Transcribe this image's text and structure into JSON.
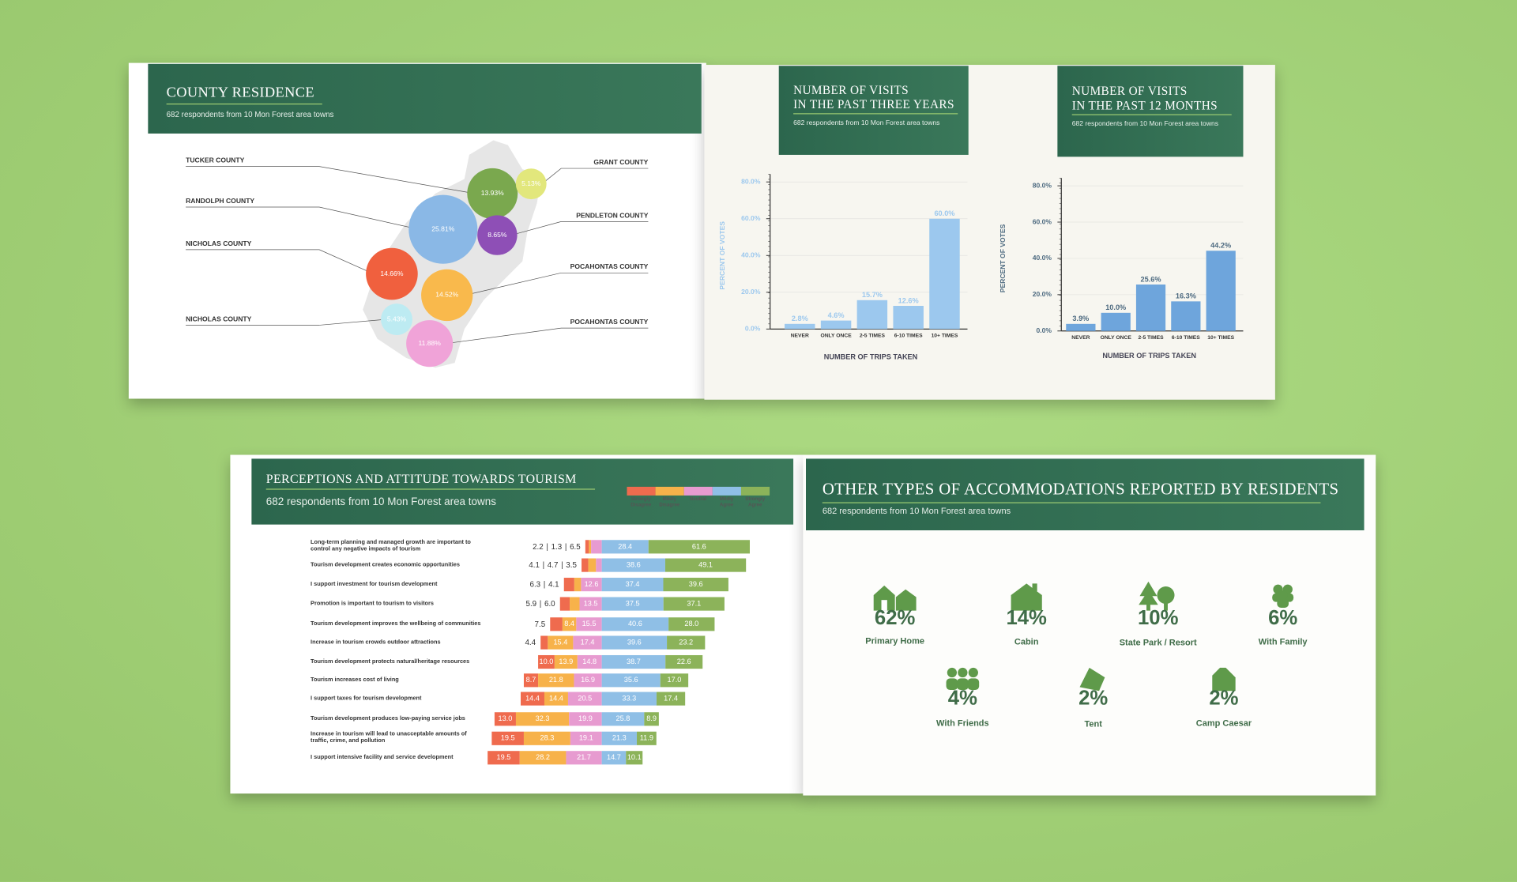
{
  "chart_data": [
    {
      "type": "bubble",
      "title": "COUNTY RESIDENCE",
      "subtitle": "682 respondents from 10 Mon Forest area towns",
      "categories": [
        "TUCKER COUNTY",
        "GRANT COUNTY",
        "RANDOLPH COUNTY",
        "PENDLETON COUNTY",
        "NICHOLAS COUNTY",
        "POCAHONTAS COUNTY",
        "NICHOLAS COUNTY",
        "POCAHONTAS COUNTY"
      ],
      "values": [
        13.93,
        5.13,
        25.81,
        8.65,
        14.66,
        14.52,
        5.43,
        11.88
      ],
      "value_labels": [
        "13.93%",
        "5.13%",
        "25.81%",
        "8.65%",
        "14.66%",
        "14.52%",
        "5.43%",
        "11.88%"
      ],
      "colors": [
        "#7aa84e",
        "#e2e77c",
        "#8ab8e6",
        "#8e4fb6",
        "#f0603e",
        "#f9b94c",
        "#bdebf2",
        "#f0a3d8"
      ]
    },
    {
      "type": "bar",
      "title_lines": [
        "NUMBER OF VISITS",
        "IN THE PAST THREE YEARS"
      ],
      "subtitle": "682 respondents from 10 Mon Forest area towns",
      "categories": [
        "NEVER",
        "ONLY ONCE",
        "2-5 TIMES",
        "6-10 TIMES",
        "10+ TIMES"
      ],
      "values": [
        2.8,
        4.6,
        15.7,
        12.6,
        60.0
      ],
      "value_labels": [
        "2.8%",
        "4.6%",
        "15.7%",
        "12.6%",
        "60.0%"
      ],
      "color": "#9cc8ee",
      "ylim": [
        0,
        80
      ],
      "yticks": [
        {
          "value": 0,
          "label": "0.0%"
        },
        {
          "value": 20,
          "label": "20.0%"
        },
        {
          "value": 40,
          "label": "40.0%"
        },
        {
          "value": 60,
          "label": "60.0%"
        },
        {
          "value": 80,
          "label": "80.0%"
        }
      ],
      "ylabel": "PERCENT OF VOTES",
      "xlabel": "NUMBER OF TRIPS TAKEN",
      "grid": true
    },
    {
      "type": "bar",
      "title_lines": [
        "NUMBER OF VISITS",
        "IN THE PAST 12 MONTHS"
      ],
      "subtitle": "682 respondents from 10 Mon Forest area towns",
      "categories": [
        "NEVER",
        "ONLY ONCE",
        "2-5 TIMES",
        "6-10 TIMES",
        "10+ TIMES"
      ],
      "values": [
        3.9,
        10.0,
        25.6,
        16.3,
        44.2
      ],
      "value_labels": [
        "3.9%",
        "10.0%",
        "25.6%",
        "16.3%",
        "44.2%"
      ],
      "color": "#6ea5dc",
      "ylim": [
        0,
        80
      ],
      "yticks": [
        {
          "value": 0,
          "label": "0.0%"
        },
        {
          "value": 20,
          "label": "20.0%"
        },
        {
          "value": 40,
          "label": "40.0%"
        },
        {
          "value": 60,
          "label": "60.0%"
        },
        {
          "value": 80,
          "label": "80.0%"
        }
      ],
      "ylabel": "PERCENT OF VOTES",
      "xlabel": "NUMBER OF TRIPS TAKEN",
      "grid": true
    },
    {
      "type": "diverging-bar",
      "title": "PERCEPTIONS AND ATTITUDE TOWARDS TOURISM",
      "subtitle": "682 respondents from 10 Mon Forest area towns",
      "label_separator": "|",
      "categories": [
        "Long-term planning and managed growth are important to control any negative impacts of tourism",
        "Tourism development creates economic opportunities",
        "I support investment for tourism development",
        "Promotion is important to tourism to visitors",
        "Tourism development improves the wellbeing of communities",
        "Increase in tourism crowds outdoor attractions",
        "Tourism development protects natural/heritage resources",
        "Tourism increases cost of living",
        "I support taxes for tourism development",
        "Tourism development produces low-paying service jobs",
        "Increase in tourism will lead to unacceptable amounts of traffic, crime, and pollution",
        "I support intensive facility and service development"
      ],
      "series": [
        {
          "name": "Strongly Disagree",
          "color": "#ef6b4e",
          "side": "left",
          "values": [
            2.2,
            4.1,
            6.3,
            5.9,
            7.5,
            4.4,
            10.0,
            8.7,
            14.4,
            13.0,
            19.5,
            19.5
          ],
          "value_labels": [
            "2.2",
            "4.1",
            "6.3",
            "5.9",
            "7.5",
            "4.4",
            "10.0",
            "8.7",
            "14.4",
            "13.0",
            "19.5",
            "19.5"
          ]
        },
        {
          "name": "Mildly Disagree",
          "color": "#f7b24a",
          "side": "left",
          "values": [
            1.3,
            4.7,
            4.1,
            6.0,
            8.4,
            15.4,
            13.9,
            21.8,
            14.4,
            32.3,
            28.3,
            28.2
          ],
          "value_labels": [
            "1.3",
            "4.7",
            "4.1",
            "6.0",
            "8.4",
            "15.4",
            "13.9",
            "21.8",
            "14.4",
            "32.3",
            "28.3",
            "28.2"
          ]
        },
        {
          "name": "Neutral",
          "color": "#e79bd0",
          "side": "left",
          "values": [
            6.5,
            3.5,
            12.6,
            13.5,
            15.5,
            17.4,
            14.8,
            16.9,
            20.5,
            19.9,
            19.1,
            21.7
          ],
          "value_labels": [
            "6.5",
            "3.5",
            "12.6",
            "13.5",
            "15.5",
            "17.4",
            "14.8",
            "16.9",
            "20.5",
            "19.9",
            "19.1",
            "21.7"
          ]
        },
        {
          "name": "Mildly Agree",
          "color": "#8fbfe6",
          "side": "right",
          "values": [
            28.4,
            38.6,
            37.4,
            37.5,
            40.6,
            39.6,
            38.7,
            35.6,
            33.3,
            25.8,
            21.3,
            14.7
          ],
          "value_labels": [
            "28.4",
            "38.6",
            "37.4",
            "37.5",
            "40.6",
            "39.6",
            "38.7",
            "35.6",
            "33.3",
            "25.8",
            "21.3",
            "14.7"
          ]
        },
        {
          "name": "Strongly Agree",
          "color": "#8cb35a",
          "side": "right",
          "values": [
            61.6,
            49.1,
            39.6,
            37.1,
            28.0,
            23.2,
            22.6,
            17.0,
            17.4,
            8.9,
            11.9,
            10.1
          ],
          "value_labels": [
            "61.6",
            "49.1",
            "39.6",
            "37.1",
            "28.0",
            "23.2",
            "22.6",
            "17.0",
            "17.4",
            "8.9",
            "11.9",
            "10.1"
          ]
        }
      ]
    }
  ],
  "accommodations": {
    "title": "OTHER TYPES OF ACCOMMODATIONS REPORTED BY RESIDENTS",
    "subtitle": "682 respondents from 10 Mon Forest area towns",
    "items": [
      {
        "value": "62%",
        "label": "Primary Home"
      },
      {
        "value": "14%",
        "label": "Cabin"
      },
      {
        "value": "10%",
        "label": "State Park / Resort"
      },
      {
        "value": "6%",
        "label": "With Family"
      },
      {
        "value": "4%",
        "label": "With Friends"
      },
      {
        "value": "2%",
        "label": "Tent"
      },
      {
        "value": "2%",
        "label": "Camp Caesar"
      }
    ]
  }
}
